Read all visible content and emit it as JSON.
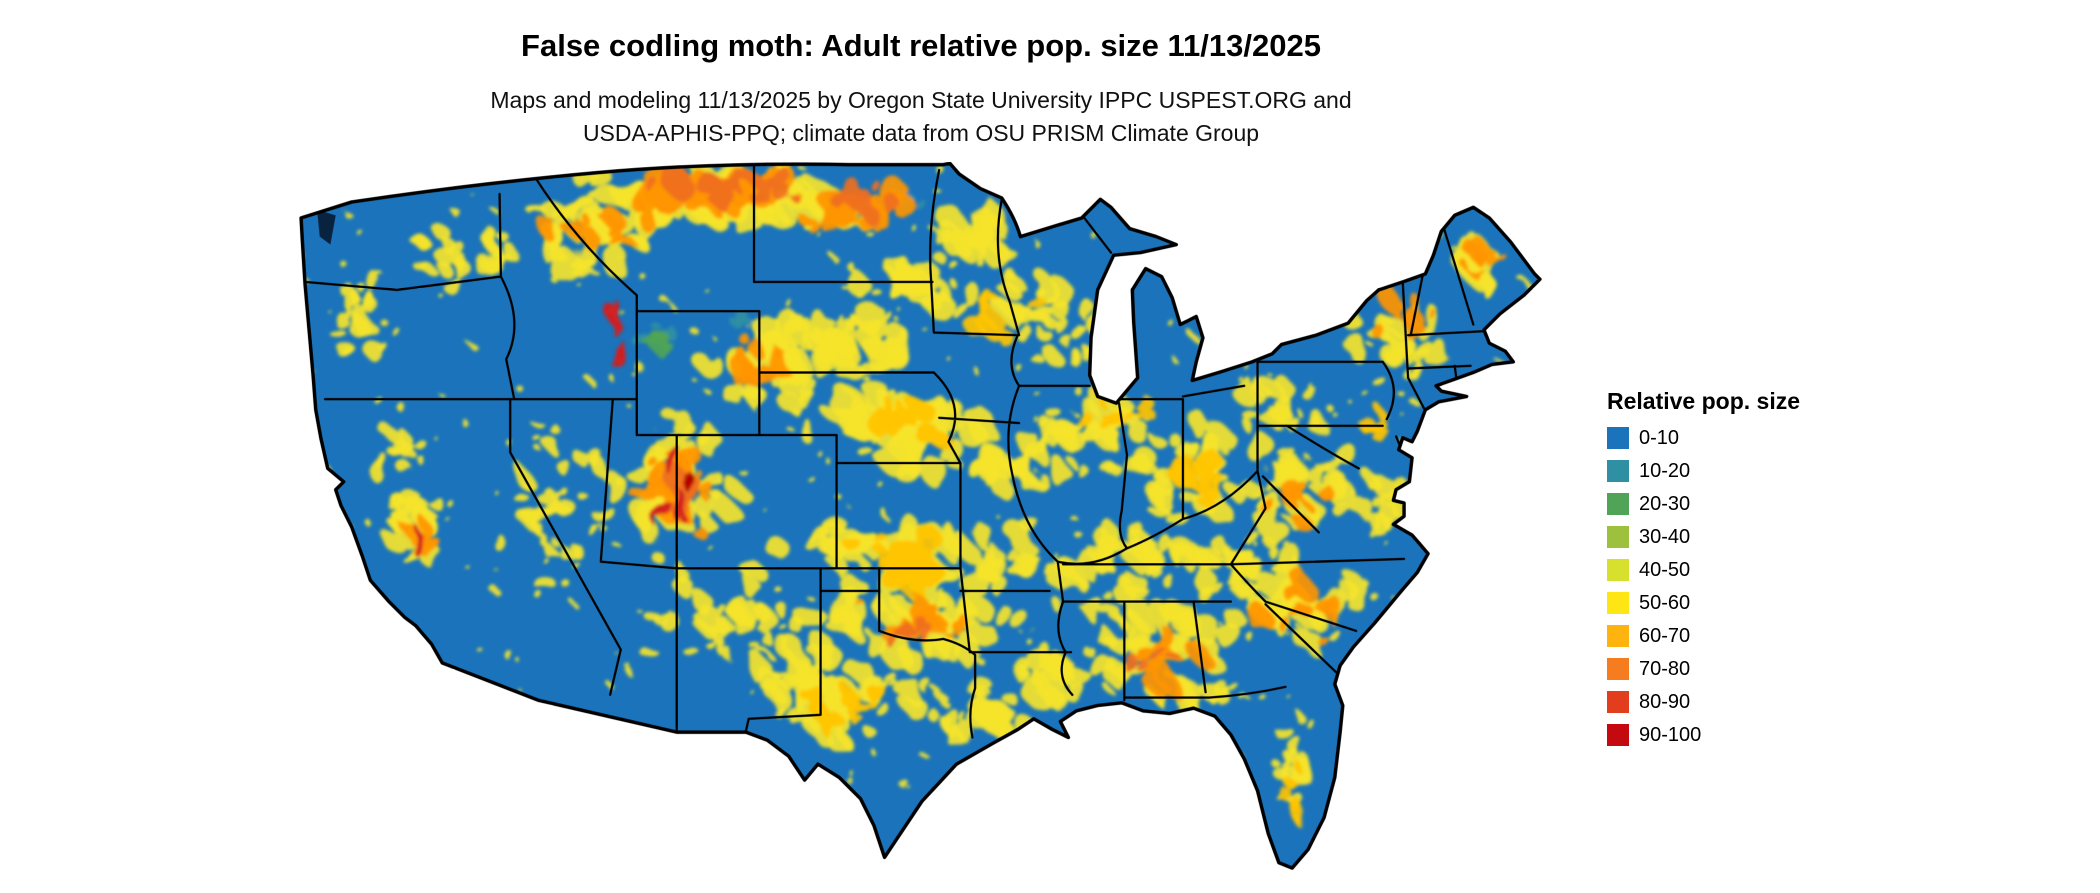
{
  "header": {
    "title": "False codling moth: Adult relative pop. size 11/13/2025",
    "subtitle_line1": "Maps and modeling 11/13/2025 by Oregon State University IPPC USPEST.ORG and",
    "subtitle_line2": "USDA-APHIS-PPQ; climate data from OSU PRISM Climate Group"
  },
  "legend": {
    "title": "Relative pop. size",
    "items": [
      {
        "label": "0-10",
        "color": "#1b74bb"
      },
      {
        "label": "10-20",
        "color": "#2f8fa3"
      },
      {
        "label": "20-30",
        "color": "#4fa457"
      },
      {
        "label": "30-40",
        "color": "#9dc13c"
      },
      {
        "label": "40-50",
        "color": "#d8e02e"
      },
      {
        "label": "50-60",
        "color": "#fee615"
      },
      {
        "label": "60-70",
        "color": "#ffb30f"
      },
      {
        "label": "70-80",
        "color": "#f57d20"
      },
      {
        "label": "80-90",
        "color": "#e23d1c"
      },
      {
        "label": "90-100",
        "color": "#c40a0e"
      }
    ]
  },
  "map": {
    "base_color": "#1b74bb",
    "outline_color": "#000000",
    "water_color": "#ffffff",
    "inland_water_color": "#08233f",
    "palette": {
      "teal": "#2f8fa3",
      "green": "#4fa457",
      "yg": "#9dc13c",
      "yellow": "#f5e42c",
      "gold": "#ffc400",
      "orange": "#ff9500",
      "dkorange": "#f06f1f",
      "red": "#d21f1f",
      "dkred": "#b30000"
    },
    "speckles": {
      "count": 380,
      "color": "yellow",
      "min_size": 1.2,
      "max_size": 3.2
    },
    "hotspots": [
      [
        285,
        128,
        22,
        16,
        "teal",
        7,
        5
      ],
      [
        290,
        134,
        18,
        12,
        "green",
        6,
        5
      ],
      [
        468,
        28,
        28,
        12,
        "teal",
        6,
        5
      ],
      [
        350,
        118,
        14,
        10,
        "teal",
        4,
        4
      ],
      [
        330,
        24,
        130,
        26,
        "yellow",
        70,
        9
      ],
      [
        235,
        55,
        75,
        40,
        "yellow",
        40,
        7
      ],
      [
        140,
        65,
        55,
        40,
        "yellow",
        22,
        5
      ],
      [
        60,
        110,
        30,
        55,
        "yellow",
        18,
        5
      ],
      [
        90,
        210,
        28,
        40,
        "yellow",
        16,
        5
      ],
      [
        100,
        275,
        30,
        55,
        "yellow",
        25,
        6
      ],
      [
        210,
        255,
        65,
        75,
        "yellow",
        40,
        5
      ],
      [
        300,
        240,
        65,
        60,
        "yellow",
        45,
        7
      ],
      [
        330,
        345,
        85,
        55,
        "yellow",
        35,
        6
      ],
      [
        385,
        150,
        70,
        40,
        "yellow",
        35,
        7
      ],
      [
        430,
        135,
        85,
        30,
        "yellow",
        40,
        7
      ],
      [
        480,
        90,
        60,
        25,
        "yellow",
        25,
        6
      ],
      [
        520,
        60,
        45,
        30,
        "yellow",
        22,
        6
      ],
      [
        560,
        110,
        45,
        35,
        "yellow",
        22,
        6
      ],
      [
        470,
        200,
        95,
        45,
        "yellow",
        50,
        8
      ],
      [
        560,
        225,
        60,
        35,
        "yellow",
        28,
        7
      ],
      [
        460,
        295,
        95,
        38,
        "yellow",
        45,
        8
      ],
      [
        480,
        345,
        90,
        38,
        "yellow",
        40,
        8
      ],
      [
        430,
        405,
        75,
        48,
        "yellow",
        40,
        7
      ],
      [
        535,
        415,
        55,
        30,
        "yellow",
        25,
        6
      ],
      [
        620,
        200,
        65,
        38,
        "yellow",
        30,
        7
      ],
      [
        685,
        235,
        70,
        45,
        "yellow",
        35,
        7
      ],
      [
        640,
        300,
        80,
        35,
        "yellow",
        32,
        7
      ],
      [
        650,
        360,
        90,
        50,
        "yellow",
        45,
        7
      ],
      [
        755,
        330,
        75,
        45,
        "yellow",
        38,
        7
      ],
      [
        765,
        245,
        65,
        45,
        "yellow",
        30,
        7
      ],
      [
        830,
        255,
        28,
        40,
        "yellow",
        16,
        6
      ],
      [
        845,
        130,
        55,
        45,
        "yellow",
        25,
        6
      ],
      [
        900,
        75,
        30,
        28,
        "yellow",
        14,
        6
      ],
      [
        695,
        398,
        55,
        16,
        "yellow",
        16,
        5
      ],
      [
        765,
        455,
        20,
        55,
        "yellow",
        20,
        5
      ],
      [
        390,
        385,
        55,
        40,
        "yellow",
        22,
        6
      ],
      [
        610,
        135,
        45,
        30,
        "yellow",
        20,
        6
      ],
      [
        745,
        180,
        45,
        30,
        "yellow",
        18,
        6
      ],
      [
        540,
        300,
        50,
        30,
        "yellow",
        22,
        6
      ],
      [
        580,
        385,
        45,
        28,
        "yellow",
        20,
        6
      ],
      [
        715,
        300,
        45,
        28,
        "yellow",
        20,
        6
      ],
      [
        330,
        20,
        95,
        16,
        "orange",
        40,
        8
      ],
      [
        430,
        32,
        55,
        22,
        "orange",
        22,
        7
      ],
      [
        300,
        245,
        40,
        40,
        "orange",
        22,
        6
      ],
      [
        460,
        300,
        55,
        22,
        "gold",
        20,
        7
      ],
      [
        475,
        348,
        50,
        22,
        "orange",
        16,
        6
      ],
      [
        660,
        368,
        50,
        28,
        "orange",
        15,
        6
      ],
      [
        770,
        338,
        40,
        24,
        "orange",
        12,
        6
      ],
      [
        848,
        120,
        30,
        25,
        "orange",
        10,
        5
      ],
      [
        905,
        72,
        22,
        18,
        "orange",
        8,
        5
      ],
      [
        470,
        195,
        55,
        25,
        "gold",
        18,
        6
      ],
      [
        360,
        150,
        40,
        25,
        "orange",
        14,
        6
      ],
      [
        240,
        50,
        45,
        28,
        "orange",
        12,
        5
      ],
      [
        690,
        235,
        40,
        28,
        "gold",
        12,
        6
      ],
      [
        628,
        192,
        35,
        20,
        "gold",
        10,
        5
      ],
      [
        432,
        410,
        45,
        30,
        "gold",
        14,
        6
      ],
      [
        770,
        250,
        30,
        22,
        "orange",
        9,
        5
      ],
      [
        105,
        282,
        14,
        30,
        "orange",
        8,
        5
      ],
      [
        540,
        112,
        28,
        20,
        "gold",
        9,
        5
      ],
      [
        760,
        470,
        12,
        30,
        "gold",
        8,
        4
      ],
      [
        820,
        200,
        22,
        18,
        "gold",
        7,
        5
      ],
      [
        330,
        18,
        70,
        12,
        "dkorange",
        18,
        7
      ],
      [
        300,
        250,
        25,
        30,
        "dkorange",
        10,
        5
      ],
      [
        480,
        350,
        30,
        15,
        "dkorange",
        7,
        5
      ],
      [
        660,
        372,
        30,
        16,
        "dkorange",
        6,
        5
      ],
      [
        435,
        28,
        35,
        15,
        "dkorange",
        8,
        6
      ],
      [
        253,
        118,
        5,
        22,
        "red",
        4,
        4
      ],
      [
        258,
        145,
        4,
        14,
        "red",
        3,
        4
      ],
      [
        297,
        225,
        5,
        16,
        "red",
        3,
        4
      ],
      [
        302,
        255,
        6,
        18,
        "red",
        4,
        4
      ],
      [
        290,
        262,
        5,
        12,
        "red",
        3,
        4
      ],
      [
        106,
        285,
        5,
        20,
        "red",
        4,
        4
      ],
      [
        310,
        238,
        4,
        12,
        "dkred",
        3,
        4
      ]
    ]
  }
}
